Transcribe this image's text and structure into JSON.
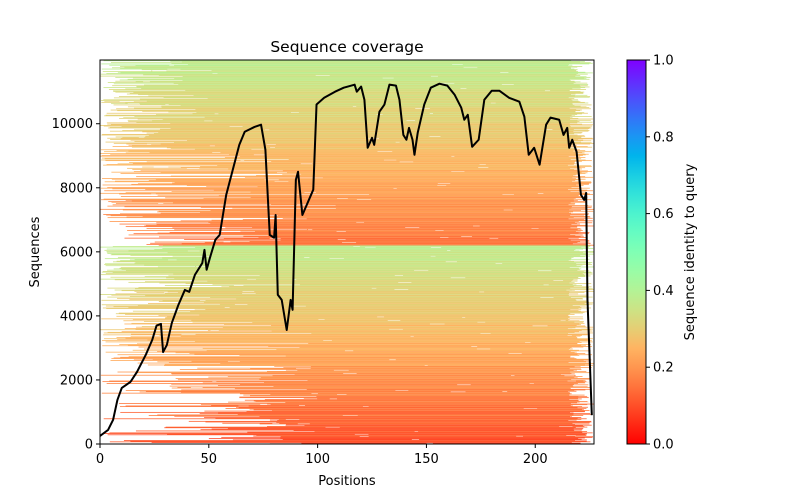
{
  "chart_data": {
    "type": "heatmap",
    "title": "Sequence coverage",
    "xlabel": "Positions",
    "ylabel": "Sequences",
    "xlim": [
      0,
      227
    ],
    "ylim": [
      0,
      11990
    ],
    "xticks": [
      0,
      50,
      100,
      150,
      200
    ],
    "yticks": [
      0,
      2000,
      4000,
      6000,
      8000,
      10000
    ],
    "grid": false,
    "colorbar": {
      "label": "Sequence identity to query",
      "colormap": "rainbow_r",
      "range": [
        0,
        1
      ],
      "ticks": [
        0.0,
        0.2,
        0.4,
        0.6,
        0.8,
        1.0
      ],
      "tick_labels": [
        "0.0",
        "0.2",
        "0.4",
        "0.6",
        "0.8",
        "1.0"
      ]
    },
    "coverage_line": {
      "name": "coverage",
      "color": "#000000",
      "x": [
        0,
        3.7,
        6,
        8,
        10,
        14,
        17,
        21,
        24,
        26,
        28,
        29,
        30.7,
        33,
        36,
        39,
        41,
        43.6,
        47,
        48,
        49,
        50.5,
        53,
        55,
        58,
        61,
        64,
        66.5,
        71,
        74,
        76,
        78,
        80,
        80.7,
        81.7,
        83.5,
        85.8,
        87.6,
        88.5,
        90,
        91,
        93,
        96,
        98,
        99.5,
        103,
        108,
        112,
        117,
        118,
        120,
        121.5,
        123,
        125,
        126,
        128.4,
        130.7,
        133,
        136,
        137.6,
        139.4,
        140.8,
        142,
        143.6,
        144.5,
        146,
        149,
        152,
        156,
        159.6,
        163,
        166,
        167.4,
        169,
        171,
        174,
        176.6,
        180,
        183.5,
        188,
        192.7,
        195,
        197,
        199.5,
        202,
        205,
        207,
        211,
        213,
        214.7,
        215.6,
        217,
        219,
        221,
        222.5,
        223.4,
        224,
        226
      ],
      "y": [
        250,
        440,
        750,
        1375,
        1750,
        1940,
        2250,
        2780,
        3250,
        3700,
        3750,
        2870,
        3090,
        3780,
        4340,
        4810,
        4750,
        5280,
        5650,
        6060,
        5440,
        5810,
        6375,
        6530,
        7780,
        8560,
        9340,
        9750,
        9900,
        9970,
        9190,
        6530,
        6440,
        7150,
        4660,
        4500,
        3560,
        4500,
        4190,
        8250,
        8500,
        7150,
        7625,
        7940,
        10600,
        10810,
        11000,
        11125,
        11220,
        11000,
        11160,
        10750,
        9250,
        9560,
        9340,
        10375,
        10600,
        11220,
        11190,
        10750,
        9650,
        9500,
        9870,
        9500,
        9030,
        9720,
        10600,
        11125,
        11250,
        11190,
        10900,
        10500,
        10125,
        10280,
        9280,
        9500,
        10750,
        11030,
        11030,
        10810,
        10690,
        10220,
        9030,
        9250,
        8720,
        9970,
        10190,
        10125,
        9650,
        9870,
        9250,
        9500,
        9125,
        7780,
        7620,
        7840,
        4500,
        900
      ]
    },
    "blocks": [
      {
        "y_range": [
          6200,
          11990
        ],
        "identity_top": 0.38,
        "identity_bottom": 0.15
      },
      {
        "y_range": [
          0,
          6200
        ],
        "identity_top": 0.38,
        "identity_bottom": 0.1
      }
    ]
  }
}
